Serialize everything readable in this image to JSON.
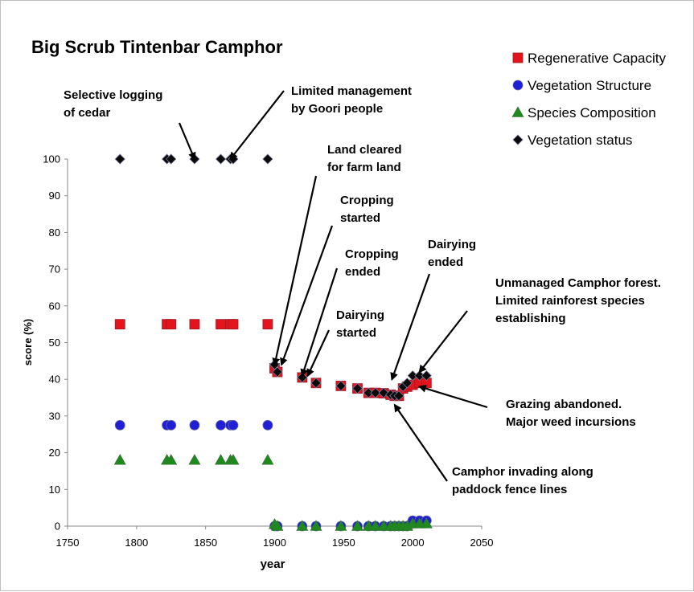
{
  "chart_data": {
    "type": "scatter",
    "title": "Big Scrub Tintenbar Camphor",
    "xlabel": "year",
    "ylabel": "score (%)",
    "xlim": [
      1750,
      2050
    ],
    "ylim": [
      0,
      100
    ],
    "xticks": [
      "1750",
      "1800",
      "1850",
      "1900",
      "1950",
      "2000",
      "2050"
    ],
    "yticks": [
      "0",
      "10",
      "20",
      "30",
      "40",
      "50",
      "60",
      "70",
      "80",
      "90",
      "100"
    ],
    "grid": false,
    "legend_position": "top-right",
    "series": [
      {
        "name": "Regenerative Capacity",
        "marker": "square",
        "color": "#e3141b",
        "points": [
          [
            1788,
            55
          ],
          [
            1822,
            55
          ],
          [
            1825,
            55
          ],
          [
            1842,
            55
          ],
          [
            1861,
            55
          ],
          [
            1868,
            55
          ],
          [
            1870,
            55
          ],
          [
            1895,
            55
          ],
          [
            1900,
            43
          ],
          [
            1902,
            42
          ],
          [
            1920,
            40.5
          ],
          [
            1930,
            39
          ],
          [
            1948,
            38.2
          ],
          [
            1960,
            37.5
          ],
          [
            1968,
            36.3
          ],
          [
            1973,
            36.3
          ],
          [
            1979,
            36.2
          ],
          [
            1984,
            35.8
          ],
          [
            1987,
            35.5
          ],
          [
            1990,
            35.5
          ],
          [
            1993,
            37.5
          ],
          [
            1996,
            38
          ],
          [
            2000,
            38.5
          ],
          [
            2005,
            39
          ],
          [
            2010,
            39
          ]
        ]
      },
      {
        "name": "Vegetation Structure",
        "marker": "circle",
        "color": "#1f1fd6",
        "points": [
          [
            1788,
            27.5
          ],
          [
            1822,
            27.5
          ],
          [
            1825,
            27.5
          ],
          [
            1842,
            27.5
          ],
          [
            1861,
            27.5
          ],
          [
            1868,
            27.5
          ],
          [
            1870,
            27.5
          ],
          [
            1895,
            27.5
          ],
          [
            1900,
            0
          ],
          [
            1902,
            0
          ],
          [
            1920,
            0
          ],
          [
            1930,
            0
          ],
          [
            1948,
            0
          ],
          [
            1960,
            0
          ],
          [
            1968,
            0
          ],
          [
            1973,
            0
          ],
          [
            1979,
            0
          ],
          [
            1984,
            0
          ],
          [
            1987,
            0
          ],
          [
            1990,
            0
          ],
          [
            1993,
            0
          ],
          [
            1996,
            0
          ],
          [
            2000,
            1.5
          ],
          [
            2005,
            1.5
          ],
          [
            2010,
            1.5
          ]
        ]
      },
      {
        "name": "Species Composition",
        "marker": "triangle",
        "color": "#1e8a1e",
        "points": [
          [
            1788,
            18
          ],
          [
            1822,
            18
          ],
          [
            1825,
            18
          ],
          [
            1842,
            18
          ],
          [
            1861,
            18
          ],
          [
            1868,
            18
          ],
          [
            1870,
            18
          ],
          [
            1895,
            18
          ],
          [
            1900,
            0.5
          ],
          [
            1902,
            0
          ],
          [
            1920,
            0
          ],
          [
            1930,
            0
          ],
          [
            1948,
            0
          ],
          [
            1960,
            0
          ],
          [
            1968,
            0
          ],
          [
            1973,
            0
          ],
          [
            1979,
            0
          ],
          [
            1984,
            0
          ],
          [
            1987,
            0
          ],
          [
            1990,
            0
          ],
          [
            1993,
            0
          ],
          [
            1996,
            0
          ],
          [
            2000,
            0.7
          ],
          [
            2005,
            0.7
          ],
          [
            2010,
            0.7
          ]
        ]
      },
      {
        "name": "Vegetation status",
        "marker": "diamond",
        "color": "#0a0a0a",
        "points": [
          [
            1788,
            100
          ],
          [
            1822,
            100
          ],
          [
            1825,
            100
          ],
          [
            1842,
            100
          ],
          [
            1861,
            100
          ],
          [
            1868,
            100
          ],
          [
            1870,
            100
          ],
          [
            1895,
            100
          ],
          [
            1900,
            44
          ],
          [
            1902,
            42
          ],
          [
            1920,
            40.5
          ],
          [
            1930,
            39
          ],
          [
            1948,
            38.2
          ],
          [
            1960,
            37.5
          ],
          [
            1968,
            36.3
          ],
          [
            1973,
            36.3
          ],
          [
            1979,
            36.3
          ],
          [
            1984,
            35.8
          ],
          [
            1987,
            35.5
          ],
          [
            1990,
            35.5
          ],
          [
            1993,
            38
          ],
          [
            1996,
            39
          ],
          [
            2000,
            41
          ],
          [
            2005,
            41
          ],
          [
            2010,
            41
          ]
        ]
      }
    ],
    "annotations": [
      {
        "lines": [
          "Selective logging",
          "of cedar"
        ],
        "target": [
          1842,
          100
        ]
      },
      {
        "lines": [
          "Limited management",
          "by Goori people"
        ],
        "target": [
          1868,
          100
        ]
      },
      {
        "lines": [
          "Land cleared",
          "for farm land"
        ],
        "target": [
          1900,
          44
        ]
      },
      {
        "lines": [
          "Cropping",
          "started"
        ],
        "target": [
          1905,
          44
        ]
      },
      {
        "lines": [
          "Cropping",
          "ended"
        ],
        "target": [
          1920,
          41
        ]
      },
      {
        "lines": [
          "Dairying",
          "started"
        ],
        "target": [
          1924,
          41
        ]
      },
      {
        "lines": [
          "Dairying",
          "ended"
        ],
        "target": [
          1985,
          40
        ]
      },
      {
        "lines": [
          "Unmanaged Camphor forest.",
          "Limited rainforest species",
          "establishing"
        ],
        "target": [
          2005,
          42
        ]
      },
      {
        "lines": [
          "Grazing abandoned.",
          "Major weed incursions"
        ],
        "target": [
          2005,
          38
        ]
      },
      {
        "lines": [
          "Camphor invading along",
          "paddock fence lines"
        ],
        "target": [
          1987,
          33
        ]
      }
    ]
  }
}
